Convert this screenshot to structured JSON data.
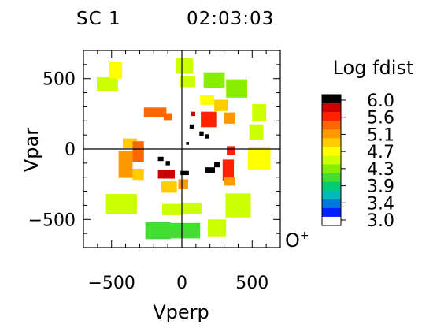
{
  "header": {
    "spacecraft": "SC 1",
    "time": "02:03:03"
  },
  "species": {
    "base": "O",
    "charge": "+"
  },
  "chart_data": {
    "type": "heatmap",
    "xlabel": "Vperp",
    "ylabel": "Vpar",
    "xlim": [
      -700,
      700
    ],
    "ylim": [
      -700,
      700
    ],
    "xticks": [
      {
        "value": -500,
        "label": "−500"
      },
      {
        "value": 0,
        "label": "0"
      },
      {
        "value": 500,
        "label": "500"
      }
    ],
    "yticks": [
      {
        "value": 500,
        "label": "500"
      },
      {
        "value": 0,
        "label": "0"
      },
      {
        "value": -500,
        "label": "−500"
      }
    ],
    "colorbar": {
      "title": "Log fdist",
      "min": 3.0,
      "max": 6.0,
      "ticks": [
        "6.0",
        "5.6",
        "5.1",
        "4.7",
        "4.3",
        "3.9",
        "3.4",
        "3.0"
      ],
      "colors": [
        "#000000",
        "#cc0000",
        "#ff2200",
        "#ff6600",
        "#ff9900",
        "#ffcc00",
        "#ffff00",
        "#ccff00",
        "#88ee00",
        "#44dd33",
        "#00cc77",
        "#00bbbb",
        "#0077dd",
        "#0022ff",
        "#ffffff"
      ]
    },
    "cells": [
      {
        "vperp": -530,
        "vpar": 460,
        "w": 150,
        "h": 100,
        "log_f": 4.6
      },
      {
        "vperp": -470,
        "vpar": 560,
        "w": 90,
        "h": 120,
        "log_f": 4.65
      },
      {
        "vperp": 20,
        "vpar": 590,
        "w": 120,
        "h": 110,
        "log_f": 4.4
      },
      {
        "vperp": 40,
        "vpar": 480,
        "w": 110,
        "h": 80,
        "log_f": 4.5
      },
      {
        "vperp": 230,
        "vpar": 490,
        "w": 150,
        "h": 110,
        "log_f": 4.3
      },
      {
        "vperp": 390,
        "vpar": 430,
        "w": 150,
        "h": 130,
        "log_f": 4.35
      },
      {
        "vperp": 550,
        "vpar": 260,
        "w": 100,
        "h": 120,
        "log_f": 4.4
      },
      {
        "vperp": 530,
        "vpar": 120,
        "w": 100,
        "h": 110,
        "log_f": 4.45
      },
      {
        "vperp": 550,
        "vpar": -70,
        "w": 160,
        "h": 160,
        "log_f": 4.65
      },
      {
        "vperp": 400,
        "vpar": -400,
        "w": 180,
        "h": 170,
        "log_f": 4.5
      },
      {
        "vperp": 250,
        "vpar": -560,
        "w": 130,
        "h": 120,
        "log_f": 4.6
      },
      {
        "vperp": 0,
        "vpar": -580,
        "w": 260,
        "h": 110,
        "log_f": 4.0
      },
      {
        "vperp": -170,
        "vpar": -580,
        "w": 180,
        "h": 120,
        "log_f": 4.05
      },
      {
        "vperp": -70,
        "vpar": -430,
        "w": 140,
        "h": 80,
        "log_f": 4.55
      },
      {
        "vperp": 70,
        "vpar": -420,
        "w": 140,
        "h": 80,
        "log_f": 4.5
      },
      {
        "vperp": -430,
        "vpar": -390,
        "w": 220,
        "h": 140,
        "log_f": 4.55
      },
      {
        "vperp": -400,
        "vpar": -110,
        "w": 100,
        "h": 190,
        "log_f": 5.1
      },
      {
        "vperp": -370,
        "vpar": 40,
        "w": 100,
        "h": 70,
        "log_f": 4.9
      },
      {
        "vperp": -310,
        "vpar": -20,
        "w": 80,
        "h": 150,
        "log_f": 5.3
      },
      {
        "vperp": -310,
        "vpar": -180,
        "w": 80,
        "h": 80,
        "log_f": 5.0
      },
      {
        "vperp": -90,
        "vpar": -270,
        "w": 110,
        "h": 80,
        "log_f": 5.0
      },
      {
        "vperp": 10,
        "vpar": -250,
        "w": 70,
        "h": 70,
        "log_f": 5.15
      },
      {
        "vperp": -110,
        "vpar": -180,
        "w": 120,
        "h": 60,
        "log_f": 5.8
      },
      {
        "vperp": 330,
        "vpar": -150,
        "w": 80,
        "h": 150,
        "log_f": 5.5
      },
      {
        "vperp": 340,
        "vpar": -230,
        "w": 80,
        "h": 60,
        "log_f": 5.2
      },
      {
        "vperp": 350,
        "vpar": -10,
        "w": 60,
        "h": 60,
        "log_f": 5.5
      },
      {
        "vperp": 190,
        "vpar": 210,
        "w": 110,
        "h": 110,
        "log_f": 5.55
      },
      {
        "vperp": 280,
        "vpar": 310,
        "w": 100,
        "h": 80,
        "log_f": 5.0
      },
      {
        "vperp": 340,
        "vpar": 220,
        "w": 80,
        "h": 80,
        "log_f": 5.2
      },
      {
        "vperp": 180,
        "vpar": 350,
        "w": 100,
        "h": 70,
        "log_f": 4.7
      },
      {
        "vperp": -190,
        "vpar": 260,
        "w": 160,
        "h": 70,
        "log_f": 5.4
      },
      {
        "vperp": -100,
        "vpar": 230,
        "w": 60,
        "h": 50,
        "log_f": 5.3
      },
      {
        "vperp": 80,
        "vpar": 250,
        "w": 30,
        "h": 30,
        "log_f": 5.7
      },
      {
        "vperp": 70,
        "vpar": 160,
        "w": 30,
        "h": 30,
        "log_f": 6.0
      },
      {
        "vperp": 140,
        "vpar": 110,
        "w": 30,
        "h": 30,
        "log_f": 6.0
      },
      {
        "vperp": 180,
        "vpar": 90,
        "w": 30,
        "h": 30,
        "log_f": 6.0
      },
      {
        "vperp": 40,
        "vpar": 40,
        "w": 20,
        "h": 20,
        "log_f": 6.0
      },
      {
        "vperp": -150,
        "vpar": -70,
        "w": 40,
        "h": 30,
        "log_f": 6.0
      },
      {
        "vperp": -100,
        "vpar": -100,
        "w": 30,
        "h": 30,
        "log_f": 6.0
      },
      {
        "vperp": 20,
        "vpar": -170,
        "w": 60,
        "h": 30,
        "log_f": 6.0
      },
      {
        "vperp": 200,
        "vpar": -150,
        "w": 70,
        "h": 40,
        "log_f": 6.0
      },
      {
        "vperp": 250,
        "vpar": -110,
        "w": 40,
        "h": 40,
        "log_f": 6.0
      }
    ]
  }
}
